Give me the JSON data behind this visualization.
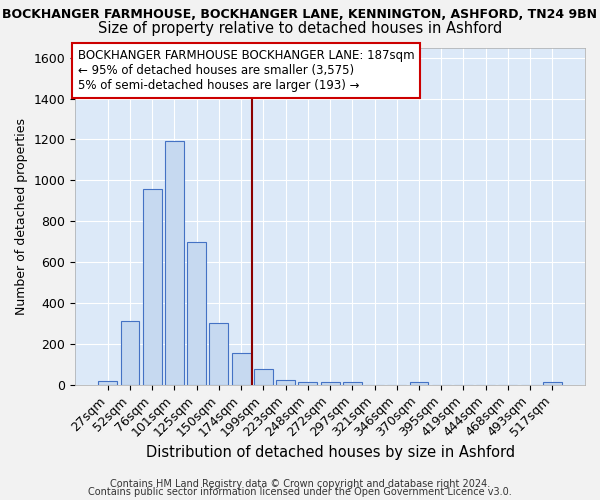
{
  "title_line1": "BOCKHANGER FARMHOUSE, BOCKHANGER LANE, KENNINGTON, ASHFORD, TN24 9BN",
  "title_line2": "Size of property relative to detached houses in Ashford",
  "xlabel": "Distribution of detached houses by size in Ashford",
  "ylabel": "Number of detached properties",
  "categories": [
    "27sqm",
    "52sqm",
    "76sqm",
    "101sqm",
    "125sqm",
    "150sqm",
    "174sqm",
    "199sqm",
    "223sqm",
    "248sqm",
    "272sqm",
    "297sqm",
    "321sqm",
    "346sqm",
    "370sqm",
    "395sqm",
    "419sqm",
    "444sqm",
    "468sqm",
    "493sqm",
    "517sqm"
  ],
  "values": [
    20,
    310,
    960,
    1195,
    700,
    300,
    155,
    75,
    25,
    15,
    12,
    12,
    0,
    0,
    12,
    0,
    0,
    0,
    0,
    0,
    12
  ],
  "bar_color": "#c6d9f0",
  "bar_edge_color": "#4472c4",
  "vline_color": "#8b0000",
  "vline_x_index": 7,
  "annotation_text_line1": "BOCKHANGER FARMHOUSE BOCKHANGER LANE: 187sqm",
  "annotation_text_line2": "← 95% of detached houses are smaller (3,575)",
  "annotation_text_line3": "5% of semi-detached houses are larger (193) →",
  "ylim": [
    0,
    1650
  ],
  "yticks": [
    0,
    200,
    400,
    600,
    800,
    1000,
    1200,
    1400,
    1600
  ],
  "footer_line1": "Contains HM Land Registry data © Crown copyright and database right 2024.",
  "footer_line2": "Contains public sector information licensed under the Open Government Licence v3.0.",
  "background_color": "#dce9f8",
  "grid_color": "#ffffff",
  "fig_bg_color": "#f2f2f2",
  "title_fontsize": 9.0,
  "subtitle_fontsize": 10.5,
  "annotation_fontsize": 8.5,
  "xlabel_fontsize": 10.5,
  "ylabel_fontsize": 9.0,
  "tick_fontsize": 9.0,
  "footer_fontsize": 7.0
}
